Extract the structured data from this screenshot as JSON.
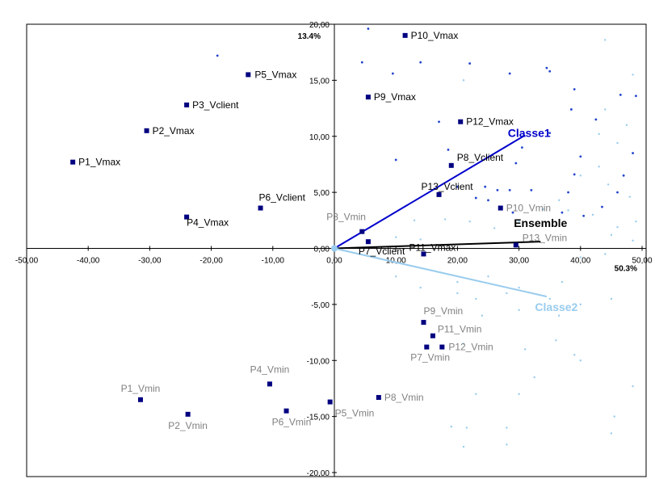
{
  "colors": {
    "max_point": "#000080",
    "max_label": "#000000",
    "min_label": "#808080",
    "ensemble": "#000000",
    "classe1": "#0000cc",
    "classe2": "#99ccee",
    "dot_dark": "#2244cc",
    "dot_light": "#99ccee"
  },
  "chart_data": {
    "type": "scatter",
    "x_range": [
      -50,
      50
    ],
    "y_range": [
      -20,
      20
    ],
    "x_ticks": [
      "-50,00",
      "-40,00",
      "-30,00",
      "-20,00",
      "-10,00",
      "0,00",
      "10,00",
      "20,00",
      "30,00",
      "40,00",
      "50,00"
    ],
    "y_ticks": [
      "20,00",
      "15,00",
      "10,00",
      "5,00",
      "0,00",
      "-5,00",
      "-10,00",
      "-15,00",
      "-20,00"
    ],
    "x_axis_pct": "50.3%",
    "y_axis_pct": "13.4%",
    "grid": false,
    "points_max": [
      {
        "label": "P1_Vmax",
        "x": -42.5,
        "y": 7.7
      },
      {
        "label": "P2_Vmax",
        "x": -30.5,
        "y": 10.5
      },
      {
        "label": "P3_Vclient",
        "x": -24.0,
        "y": 12.8
      },
      {
        "label": "P4_Vmax",
        "x": -24.0,
        "y": 2.8
      },
      {
        "label": "P5_Vmax",
        "x": -14.0,
        "y": 15.5
      },
      {
        "label": "P6_Vclient",
        "x": -12.0,
        "y": 3.6
      },
      {
        "label": "P7_Vclient",
        "x": 5.5,
        "y": 0.6
      },
      {
        "label": "P8_Vclient",
        "x": 19.0,
        "y": 7.4
      },
      {
        "label": "P9_Vmax",
        "x": 5.5,
        "y": 13.5
      },
      {
        "label": "P10_Vmax",
        "x": 11.5,
        "y": 19.0
      },
      {
        "label": "P11_Vmax",
        "x": 14.5,
        "y": -0.5
      },
      {
        "label": "P12_Vmax",
        "x": 20.5,
        "y": 11.3
      },
      {
        "label": "P13_Vclient",
        "x": 17.0,
        "y": 4.8
      }
    ],
    "points_min": [
      {
        "label": "P1_Vmin",
        "x": -31.5,
        "y": -13.5
      },
      {
        "label": "P2_Vmin",
        "x": -23.8,
        "y": -14.8
      },
      {
        "label": "P3_Vmin",
        "x": 4.5,
        "y": 1.5
      },
      {
        "label": "P4_Vmin",
        "x": -10.5,
        "y": -12.1
      },
      {
        "label": "P5_Vmin",
        "x": -0.7,
        "y": -13.7
      },
      {
        "label": "P6_Vmin",
        "x": -7.8,
        "y": -14.5
      },
      {
        "label": "P7_Vmin",
        "x": 15.0,
        "y": -8.8
      },
      {
        "label": "P8_Vmin",
        "x": 7.2,
        "y": -13.3
      },
      {
        "label": "P9_Vmin",
        "x": 14.5,
        "y": -6.6
      },
      {
        "label": "P10_Vmin",
        "x": 27.0,
        "y": 3.6
      },
      {
        "label": "P11_Vmin",
        "x": 16.0,
        "y": -7.8
      },
      {
        "label": "P12_Vmin",
        "x": 17.5,
        "y": -8.8
      },
      {
        "label": "P13_Vmin",
        "x": 29.5,
        "y": 0.3
      }
    ],
    "vectors": [
      {
        "name": "Ensemble",
        "x": 33.5,
        "y": 0.6
      },
      {
        "name": "Classe1",
        "x": 31.0,
        "y": 10.1
      },
      {
        "name": "Classe2",
        "x": 34.5,
        "y": -4.3
      }
    ],
    "individuals_dark": [
      [
        -19.0,
        17.2
      ],
      [
        5.5,
        19.6
      ],
      [
        4.5,
        16.6
      ],
      [
        9.5,
        15.6
      ],
      [
        14.0,
        16.6
      ],
      [
        22.0,
        16.5
      ],
      [
        28.5,
        15.6
      ],
      [
        35.0,
        15.8
      ],
      [
        34.5,
        16.1
      ],
      [
        39.0,
        14.2
      ],
      [
        46.5,
        13.7
      ],
      [
        49.0,
        13.6
      ],
      [
        38.5,
        12.4
      ],
      [
        42.5,
        11.5
      ],
      [
        17.0,
        11.3
      ],
      [
        35.0,
        10.3
      ],
      [
        30.5,
        9.0
      ],
      [
        40.0,
        8.2
      ],
      [
        18.5,
        8.8
      ],
      [
        10.0,
        7.9
      ],
      [
        29.5,
        7.6
      ],
      [
        39.0,
        6.6
      ],
      [
        47.0,
        6.5
      ],
      [
        48.5,
        8.5
      ],
      [
        46.0,
        5.0
      ],
      [
        24.5,
        5.5
      ],
      [
        26.5,
        5.2
      ],
      [
        28.5,
        5.2
      ],
      [
        32.0,
        5.2
      ],
      [
        38.0,
        5.0
      ],
      [
        25.0,
        4.3
      ],
      [
        23.0,
        4.5
      ],
      [
        43.5,
        3.7
      ],
      [
        37.0,
        3.2
      ],
      [
        20.0,
        5.5
      ],
      [
        40.5,
        2.9
      ],
      [
        29.0,
        3.2
      ]
    ],
    "individuals_light": [
      [
        44.0,
        18.6
      ],
      [
        21.0,
        15.0
      ],
      [
        48.5,
        15.5
      ],
      [
        44.0,
        12.4
      ],
      [
        47.5,
        11.0
      ],
      [
        43.0,
        10.2
      ],
      [
        46.0,
        9.4
      ],
      [
        43.0,
        7.3
      ],
      [
        40.0,
        6.5
      ],
      [
        48.0,
        4.6
      ],
      [
        44.5,
        5.7
      ],
      [
        36.5,
        4.3
      ],
      [
        34.0,
        3.5
      ],
      [
        38.0,
        3.4
      ],
      [
        42.0,
        3.0
      ],
      [
        49.0,
        2.4
      ],
      [
        46.0,
        1.9
      ],
      [
        30.0,
        2.4
      ],
      [
        36.0,
        2.0
      ],
      [
        26.0,
        1.8
      ],
      [
        45.0,
        1.2
      ],
      [
        48.5,
        0.7
      ],
      [
        13.0,
        2.5
      ],
      [
        18.0,
        2.6
      ],
      [
        10.0,
        1.0
      ],
      [
        14.0,
        0.8
      ],
      [
        22.0,
        2.4
      ],
      [
        40.0,
        -0.8
      ],
      [
        44.0,
        -0.5
      ],
      [
        10.0,
        -2.5
      ],
      [
        14.0,
        -3.5
      ],
      [
        20.0,
        -3.0
      ],
      [
        25.0,
        -2.5
      ],
      [
        30.0,
        -3.5
      ],
      [
        20.0,
        -4.0
      ],
      [
        28.0,
        -4.0
      ],
      [
        37.0,
        -3.0
      ],
      [
        40.0,
        -5.0
      ],
      [
        45.0,
        -4.5
      ],
      [
        23.0,
        -4.5
      ],
      [
        35.0,
        -4.5
      ],
      [
        24.0,
        -6.0
      ],
      [
        30.0,
        -5.5
      ],
      [
        36.5,
        -6.0
      ],
      [
        36.0,
        -8.2
      ],
      [
        40.0,
        -10.0
      ],
      [
        31.0,
        -9.0
      ],
      [
        21.0,
        -8.5
      ],
      [
        32.5,
        -11.5
      ],
      [
        30.0,
        -13.0
      ],
      [
        23.0,
        -13.0
      ],
      [
        19.0,
        -15.9
      ],
      [
        21.5,
        -16.0
      ],
      [
        28.0,
        -16.0
      ],
      [
        21.0,
        -17.7
      ],
      [
        28.0,
        -17.5
      ],
      [
        45.5,
        -15.0
      ],
      [
        48.5,
        -12.3
      ],
      [
        45.0,
        -16.5
      ],
      [
        39.0,
        -9.5
      ]
    ]
  }
}
